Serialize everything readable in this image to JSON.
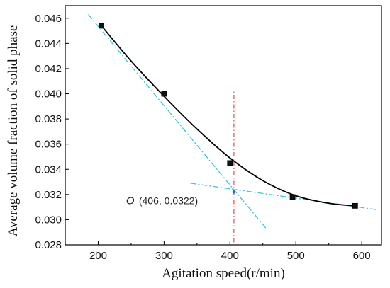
{
  "chart_data": {
    "type": "scatter",
    "xlabel": "Agitation speed(r/min)",
    "ylabel": "Average volume fraction of solid phase",
    "xlim": [
      150,
      630
    ],
    "ylim": [
      0.028,
      0.047
    ],
    "xticks": [
      200,
      300,
      400,
      500,
      600
    ],
    "yticks": [
      0.028,
      0.03,
      0.032,
      0.034,
      0.036,
      0.038,
      0.04,
      0.042,
      0.044,
      0.046
    ],
    "xtick_labels": [
      "200",
      "300",
      "400",
      "500",
      "600"
    ],
    "ytick_labels": [
      "0.028",
      "0.030",
      "0.032",
      "0.034",
      "0.036",
      "0.038",
      "0.040",
      "0.042",
      "0.044",
      "0.046"
    ],
    "grid": false,
    "series": [
      {
        "points": [
          {
            "x": 205,
            "y": 0.0454
          },
          {
            "x": 300,
            "y": 0.04
          },
          {
            "x": 400,
            "y": 0.0345
          },
          {
            "x": 495,
            "y": 0.0318
          },
          {
            "x": 590,
            "y": 0.0311
          }
        ]
      }
    ],
    "fit_curve": {
      "x": [
        205,
        250,
        300,
        350,
        400,
        450,
        500,
        550,
        590
      ],
      "y": [
        0.0454,
        0.0426,
        0.0398,
        0.0372,
        0.0349,
        0.0331,
        0.0319,
        0.0313,
        0.0311
      ]
    },
    "tangent_lines": [
      {
        "x1": 185,
        "y1": 0.0463,
        "x2": 455,
        "y2": 0.0293
      },
      {
        "x1": 340,
        "y1": 0.0329,
        "x2": 622,
        "y2": 0.0308
      }
    ],
    "vertical_line_x": 406,
    "vertical_line_y": [
      0.0282,
      0.0403
    ],
    "intersection": {
      "x": 406,
      "y": 0.0322
    },
    "annotation": {
      "prefix": "O",
      "text": "(406,  0.0322)"
    },
    "colors": {
      "curve": "#000000",
      "marker": "#111111",
      "tangent": "#35c8df",
      "vertical": "#e55a5a"
    }
  }
}
